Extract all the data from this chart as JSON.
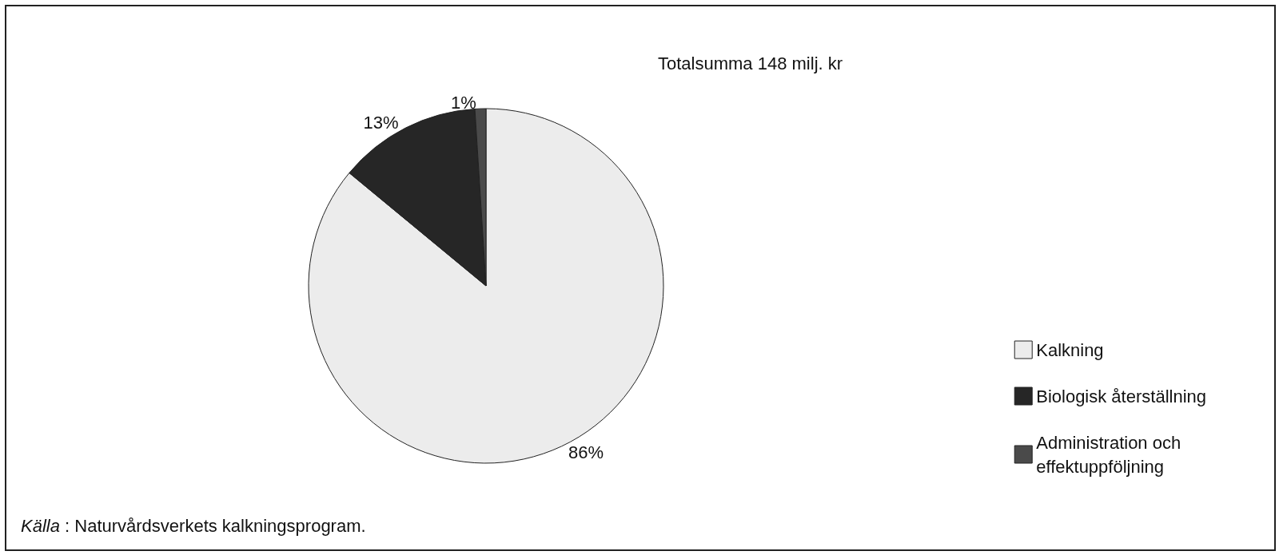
{
  "chart_data": {
    "type": "pie",
    "subtitle": "Totalsumma 148 milj. kr",
    "categories": [
      "Kalkning",
      "Biologisk återställning",
      "Administration och\neffektuppföljning"
    ],
    "values": [
      86,
      13,
      1
    ],
    "colors": [
      "#ececec",
      "#262626",
      "#4a4a4a"
    ],
    "value_labels": [
      "86%",
      "13%",
      "1%"
    ],
    "legend": "right",
    "annotations": [
      "Källa : Naturvårdsverkets kalkningsprogram."
    ]
  }
}
